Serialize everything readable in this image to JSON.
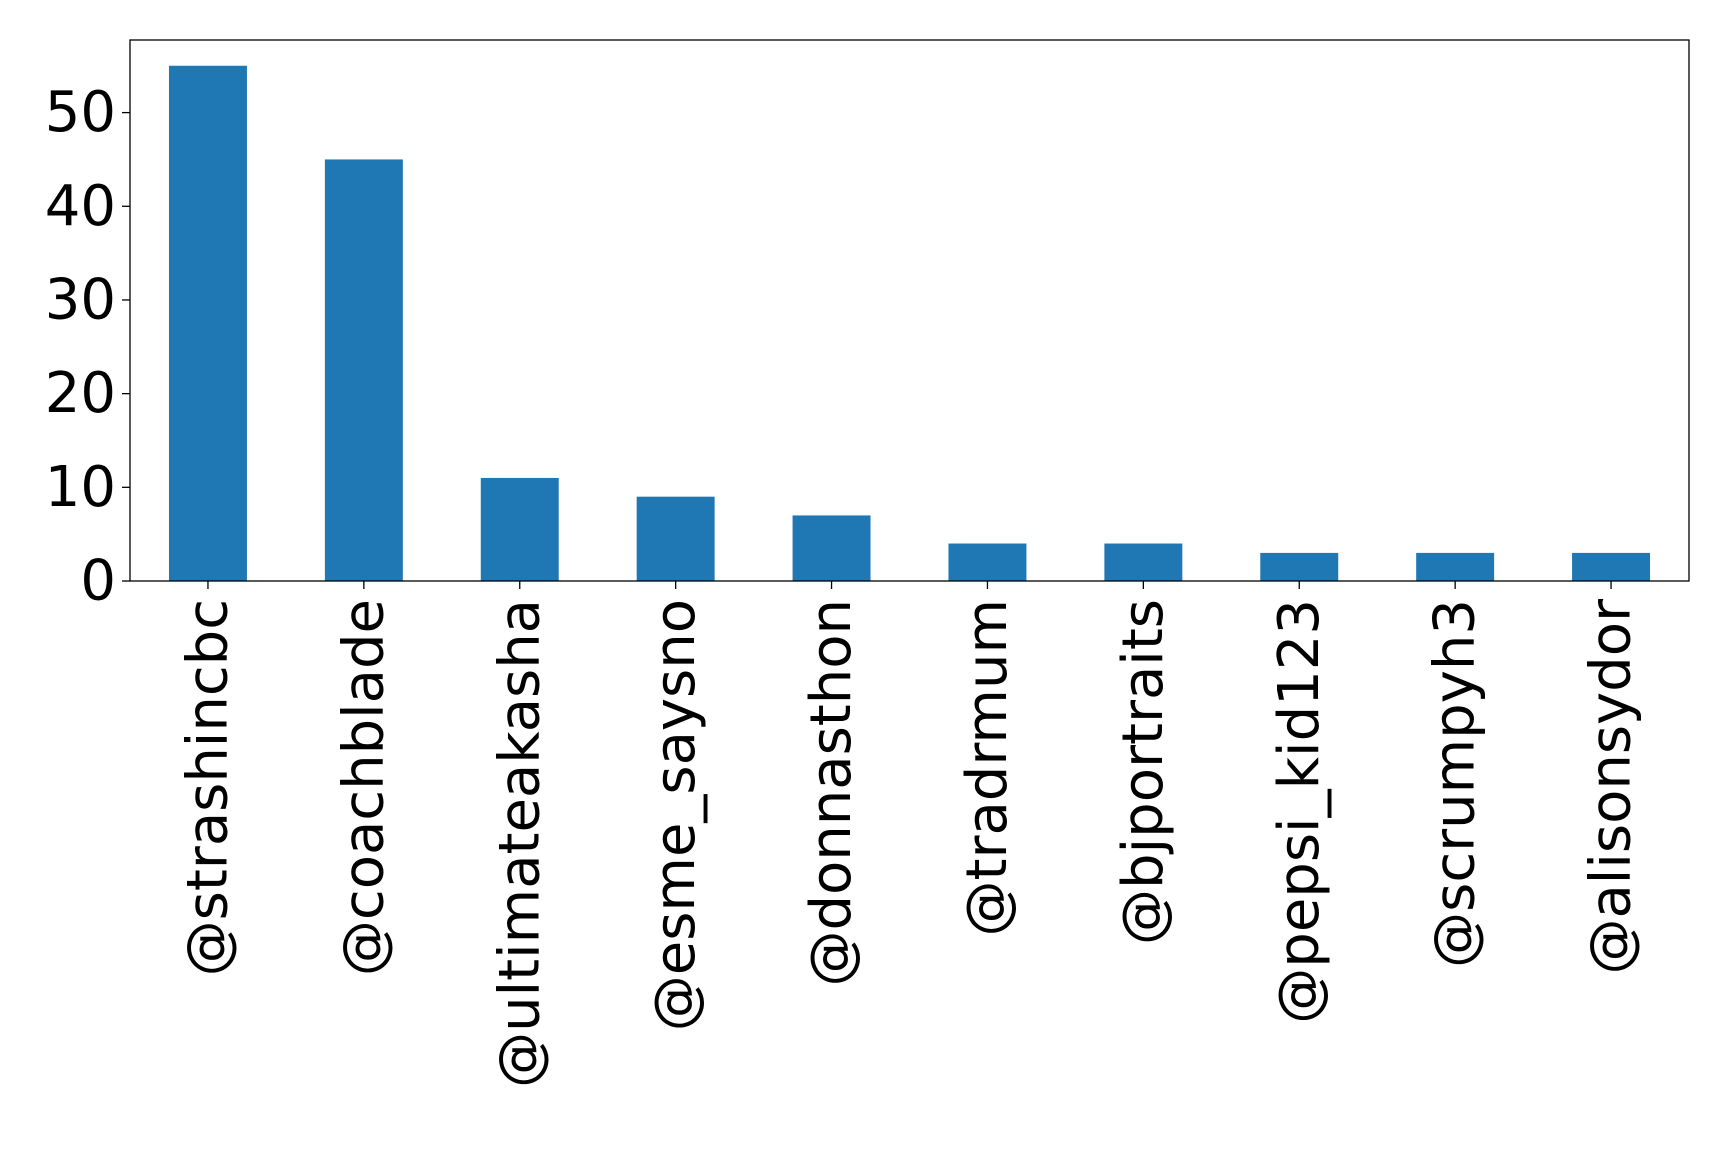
{
  "chart_data": {
    "type": "bar",
    "title": "",
    "xlabel": "",
    "ylabel": "",
    "categories": [
      "@strashincbc",
      "@coachblade",
      "@ultimateakasha",
      "@esme_saysno",
      "@donnasthon",
      "@tradrmum",
      "@bjportraits",
      "@pepsi_kid123",
      "@scrumpyh3",
      "@alisonsydor"
    ],
    "values": [
      55,
      45,
      11,
      9,
      7,
      4,
      4,
      3,
      3,
      3
    ],
    "ylim": [
      0,
      57.75
    ],
    "yticks": [
      0,
      10,
      20,
      30,
      40,
      50
    ],
    "grid": false,
    "legend": "none",
    "bar_color": "#1f77b4"
  }
}
